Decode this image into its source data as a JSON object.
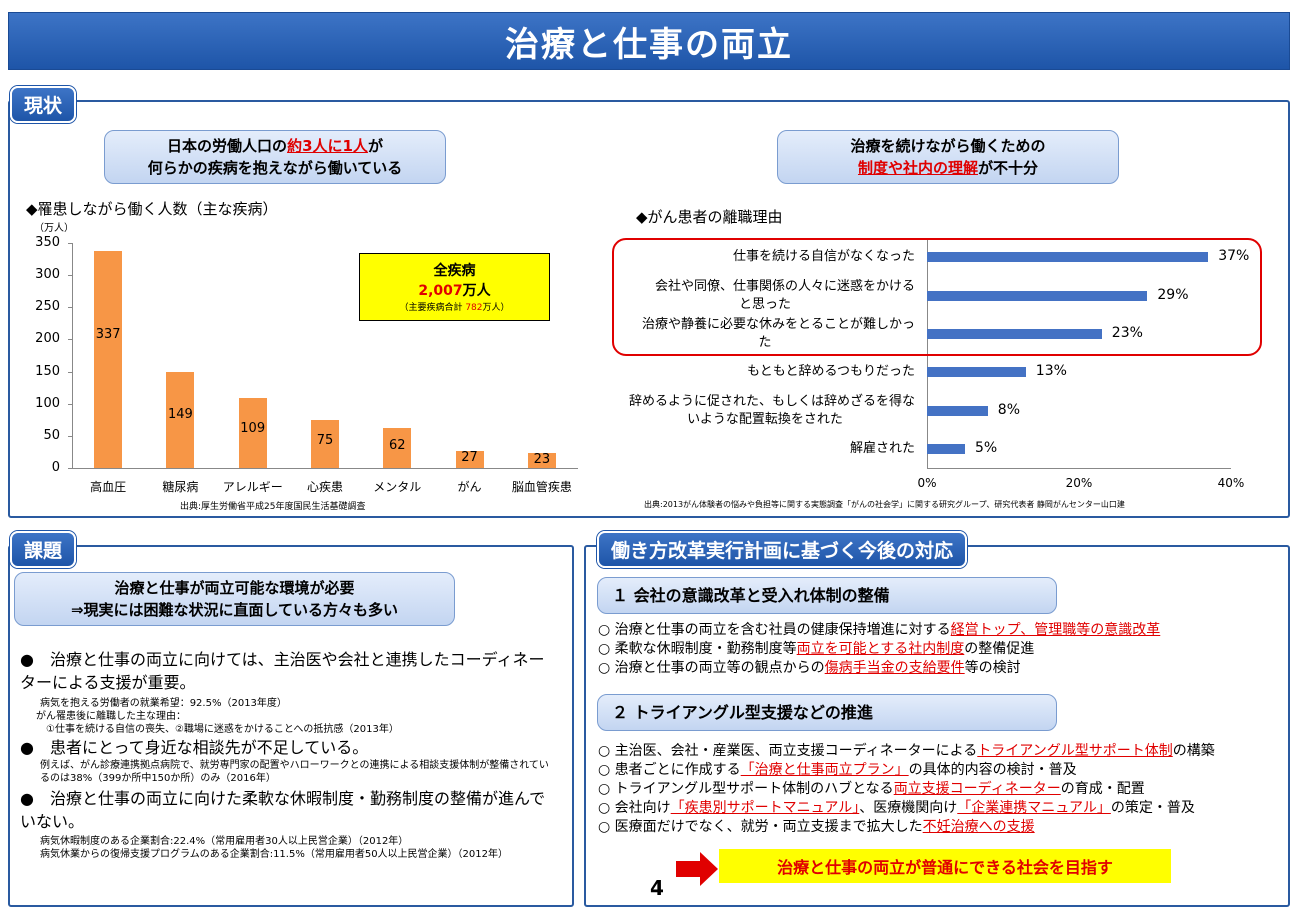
{
  "title": "治療と仕事の両立",
  "sections": {
    "current": "現状",
    "issues": "課題",
    "plan": "働き方改革実行計画に基づく今後の対応"
  },
  "left_pill": {
    "line1_a": "日本の労働人口の",
    "line1_red": "約3人に1人",
    "line1_b": "が",
    "line2": "何らかの疾病を抱えながら働いている"
  },
  "right_pill": {
    "line1": "治療を続けながら働くための",
    "line2_red": "制度や社内の理解",
    "line2_b": "が不十分"
  },
  "bar_chart_heading": "◆罹患しながら働く人数（主な疾病）",
  "bar_chart_unit": "（万人）",
  "total_box": {
    "label": "全疾病",
    "value": "2,007",
    "unit": "万人",
    "sub_a": "（主要疾病合計 ",
    "sub_red": "782",
    "sub_b": "万人）"
  },
  "bar_source": "出典:厚生労働省平成25年度国民生活基礎調査",
  "hbar_heading": "◆がん患者の離職理由",
  "hbar_source": "出典:2013がん体験者の悩みや負担等に関する実態調査「がんの社会学」に関する研究グループ、研究代表者  静岡がんセンター山口建",
  "chart_data": [
    {
      "type": "bar",
      "title": "◆罹患しながら働く人数（主な疾病）",
      "ylabel": "（万人）",
      "categories": [
        "高血圧",
        "糖尿病",
        "アレルギー",
        "心疾患",
        "メンタル",
        "がん",
        "脳血管疾患"
      ],
      "values": [
        337,
        149,
        109,
        75,
        62,
        27,
        23
      ],
      "ylim": [
        0,
        350
      ],
      "yticks": [
        "0",
        "50",
        "100",
        "150",
        "200",
        "250",
        "300",
        "350"
      ],
      "color": "#f79646"
    },
    {
      "type": "bar",
      "orientation": "horizontal",
      "title": "◆がん患者の離職理由",
      "categories": [
        "仕事を続ける自信がなくなった",
        "会社や同僚、仕事関係の人々に迷惑をかけると思った",
        "治療や静養に必要な休みをとることが難しかった",
        "もともと辞めるつもりだった",
        "辞めるように促された、もしくは辞めざるを得ないような配置転換をされた",
        "解雇された"
      ],
      "cat_lines": [
        [
          "仕事を続ける自信がなくなった"
        ],
        [
          "会社や同僚、仕事関係の人々に迷惑をかける",
          "と思った"
        ],
        [
          "治療や静養に必要な休みをとることが難しかっ",
          "た"
        ],
        [
          "もともと辞めるつもりだった"
        ],
        [
          "辞めるように促された、もしくは辞めざるを得な",
          "いような配置転換をされた"
        ],
        [
          "解雇された"
        ]
      ],
      "values": [
        37,
        29,
        23,
        13,
        8,
        5
      ],
      "value_labels": [
        "37%",
        "29%",
        "23%",
        "13%",
        "8%",
        "5%"
      ],
      "xlim": [
        0,
        40
      ],
      "xticks": [
        "0%",
        "20%",
        "40%"
      ],
      "color": "#4472c4"
    }
  ],
  "issues_pill": {
    "line1": "治療と仕事が両立可能な環境が必要",
    "line2": "⇒現実には困難な状況に直面している方々も多い"
  },
  "issues": {
    "b1": "●　治療と仕事の両立に向けては、主治医や会社と連携したコーディネーターによる支援が重要。",
    "b1_notes": [
      "病気を抱える労働者の就業希望：92.5%（2013年度）",
      "がん罹患後に離職した主な理由：",
      "①仕事を続ける自信の喪失、②職場に迷惑をかけることへの抵抗感（2013年）"
    ],
    "b2": "●　患者にとって身近な相談先が不足している。",
    "b2_notes": [
      "例えば、がん診療連携拠点病院で、就労専門家の配置やハローワークとの連携による相談支援体制が整備されているのは38%（399か所中150か所）のみ（2016年）"
    ],
    "b3": "●　治療と仕事の両立に向けた柔軟な休暇制度・勤務制度の整備が進んでいない。",
    "b3_notes": [
      "病気休暇制度のある企業割合:22.4%（常用雇用者30人以上民営企業）（2012年）",
      "病気休業からの復帰支援プログラムのある企業割合:11.5%（常用雇用者50人以上民営企業）（2012年）"
    ]
  },
  "plan": {
    "h1": "１  会社の意識改革と受入れ体制の整備",
    "h1_items": [
      {
        "a": "○  治療と仕事の両立を含む社員の健康保持増進に対する",
        "r": "経営トップ、管理職等の意識改革",
        "b": ""
      },
      {
        "a": "○  柔軟な休暇制度・勤務制度等",
        "r": "両立を可能とする社内制度",
        "b": "の整備促進"
      },
      {
        "a": "○  治療と仕事の両立等の観点からの",
        "r": "傷病手当金の支給要件",
        "b": "等の検討"
      }
    ],
    "h2": "２  トライアングル型支援などの推進",
    "h2_items": [
      {
        "a": "○  主治医、会社・産業医、両立支援コーディネーターによる",
        "r": "トライアングル型サポート体制",
        "b": "の構築"
      },
      {
        "a": "○  患者ごとに作成する",
        "r": "「治療と仕事両立プラン」",
        "b": "の具体的内容の検討・普及"
      },
      {
        "a": "○  トライアングル型サポート体制のハブとなる",
        "r": "両立支援コーディネーター",
        "b": "の育成・配置"
      },
      {
        "a": "○  会社向け",
        "r": "「疾患別サポートマニュアル」",
        "b": "、医療機関向け",
        "r2": "「企業連携マニュアル」",
        "b2": "の策定・普及"
      },
      {
        "a": "○  医療面だけでなく、就労・両立支援まで拡大した",
        "r": "不妊治療への支援",
        "b": ""
      }
    ],
    "goal": "治療と仕事の両立が普通にできる社会を目指す"
  },
  "page_number": "4"
}
